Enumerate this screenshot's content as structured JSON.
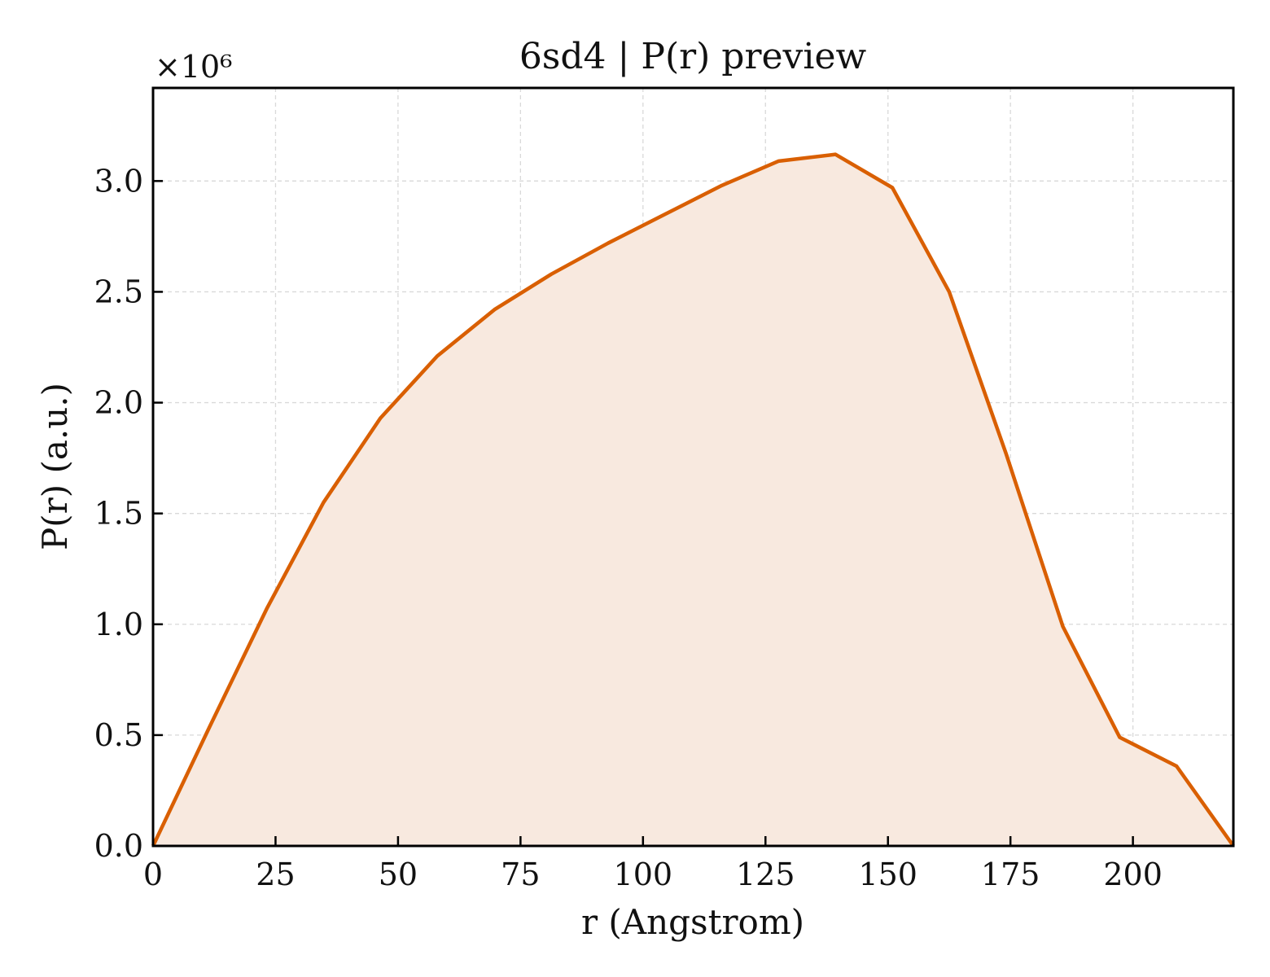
{
  "chart_data": {
    "type": "area",
    "title": "6sd4 | P(r) preview",
    "xlabel": "r (Angstrom)",
    "ylabel": "P(r) (a.u.)",
    "y_multiplier_label": "×10⁶",
    "y_multiplier": 1000000,
    "xlim": [
      0,
      220.5
    ],
    "ylim": [
      0,
      3.42
    ],
    "x_ticks": [
      0,
      25,
      50,
      75,
      100,
      125,
      150,
      175,
      200
    ],
    "x_tick_labels": [
      "0",
      "25",
      "50",
      "75",
      "100",
      "125",
      "150",
      "175",
      "200"
    ],
    "y_ticks": [
      0.0,
      0.5,
      1.0,
      1.5,
      2.0,
      2.5,
      3.0
    ],
    "y_tick_labels": [
      "0.0",
      "0.5",
      "1.0",
      "1.5",
      "2.0",
      "2.5",
      "3.0"
    ],
    "grid": true,
    "line_color": "#d95f02",
    "fill_color": "#f8e9df",
    "series": [
      {
        "x": [
          0,
          11.6,
          23.2,
          34.8,
          46.4,
          58.0,
          69.7,
          81.3,
          92.9,
          104.5,
          116.1,
          127.7,
          139.3,
          150.9,
          162.5,
          174.1,
          185.7,
          197.3,
          208.9,
          220.5
        ],
        "y": [
          0.0,
          0.54,
          1.07,
          1.55,
          1.93,
          2.21,
          2.42,
          2.58,
          2.72,
          2.85,
          2.98,
          3.09,
          3.12,
          2.97,
          2.5,
          1.77,
          0.99,
          0.49,
          0.36,
          0.0
        ]
      }
    ]
  }
}
